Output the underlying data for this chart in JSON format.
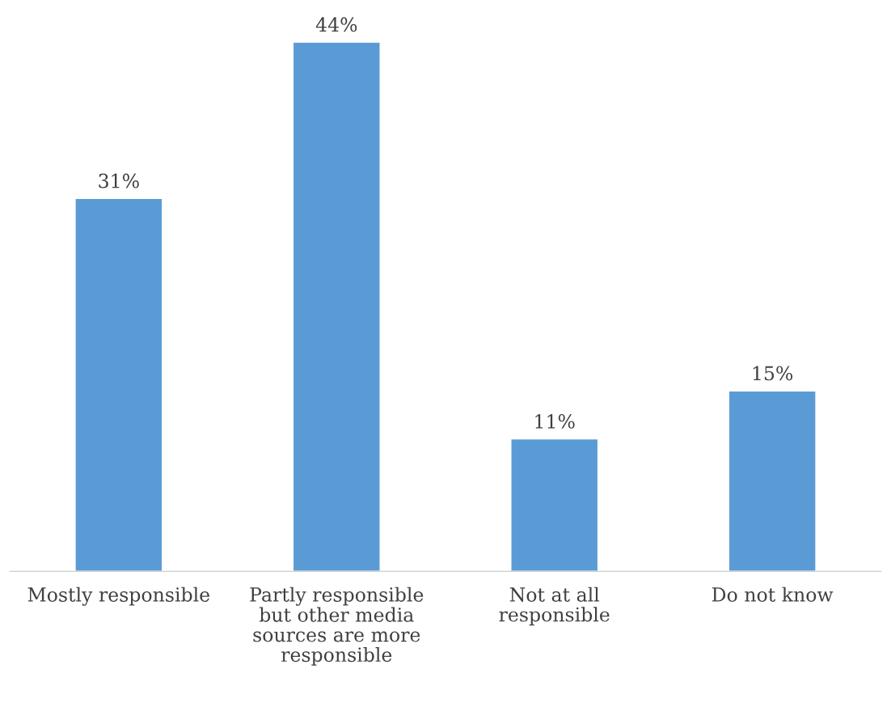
{
  "chart_data": {
    "type": "bar",
    "categories": [
      "Mostly responsible",
      "Partly responsible\nbut other media\nsources are more\nresponsible",
      "Not at all\nresponsible",
      "Do not know"
    ],
    "values": [
      31,
      44,
      11,
      15
    ],
    "value_labels": [
      "31%",
      "44%",
      "11%",
      "15%"
    ],
    "color": "#5b9bd5",
    "grid": false,
    "legend": false
  }
}
